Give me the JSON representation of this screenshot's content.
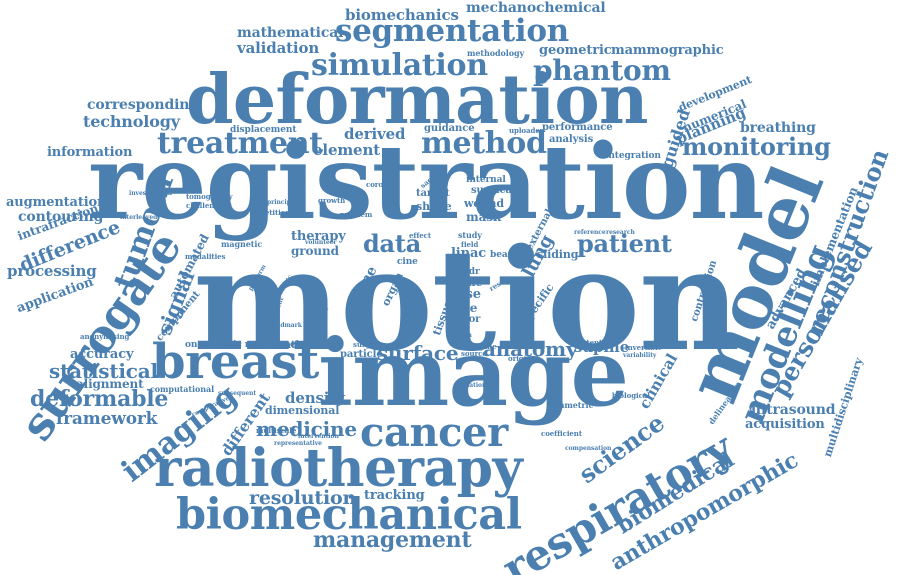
{
  "word_color": "#4a7fb0",
  "background": "#ffffff",
  "words": [
    "motion",
    "registration",
    "image",
    "deformation",
    "model",
    "radiotherapy",
    "biomechanical",
    "respiratory",
    "breast",
    "surrogate",
    "cancer",
    "modelling",
    "segmentation",
    "simulation",
    "treatment",
    "method",
    "phantom",
    "tumour",
    "imaging",
    "personalised",
    "reconstruction",
    "monitoring",
    "patient",
    "data",
    "science",
    "anthropomorphic",
    "biomedical",
    "management",
    "deformable",
    "statistical",
    "medicine",
    "resolution",
    "framework",
    "difference",
    "signal",
    "surface",
    "anatomy",
    "mechanochemical",
    "biomechanics",
    "mathematical",
    "validation",
    "geometric",
    "mammographic",
    "corresponding",
    "technology",
    "information",
    "element",
    "derived",
    "planning",
    "breathing",
    "guided",
    "development",
    "numerical",
    "augmentation",
    "contouring",
    "intrafraction",
    "processing",
    "application",
    "accuracy",
    "alignment",
    "automated",
    "different",
    "density",
    "dimensional",
    "estimation",
    "ultrasound",
    "acquisition",
    "multidisciplinary",
    "implementation",
    "advanced",
    "contraction",
    "supine",
    "clinical",
    "lung",
    "tracking",
    "therapy",
    "ground",
    "prone",
    "linac",
    "dose",
    "time",
    "slice",
    "mask",
    "wound",
    "shape",
    "target",
    "surgical",
    "internal",
    "guidance",
    "analysis",
    "performance",
    "integration",
    "displacement",
    "component",
    "particle",
    "oncoplastic resonance",
    "computational",
    "sliding",
    "beam",
    "external",
    "specific",
    "tissue",
    "error",
    "methodology",
    "uploader",
    "magnetic",
    "modalities",
    "multiscale",
    "coefficient",
    "symmetric",
    "biological",
    "delineation",
    "anonymising",
    "tomography",
    "challenging",
    "interleaved",
    "investigation",
    "repetition",
    "principal",
    "growth",
    "problem",
    "coronal",
    "sagittal",
    "study",
    "field",
    "source",
    "original",
    "potential",
    "compensation",
    "variability",
    "invertible",
    "representative",
    "intervention",
    "radiation",
    "research",
    "reference",
    "subsequent",
    "comparative",
    "cine",
    "organ",
    "result",
    "breath",
    "spine",
    "midr",
    "effect",
    "volunteer",
    "surgery",
    "estimate",
    "platform",
    "consistent",
    "heuristic",
    "landmark"
  ]
}
